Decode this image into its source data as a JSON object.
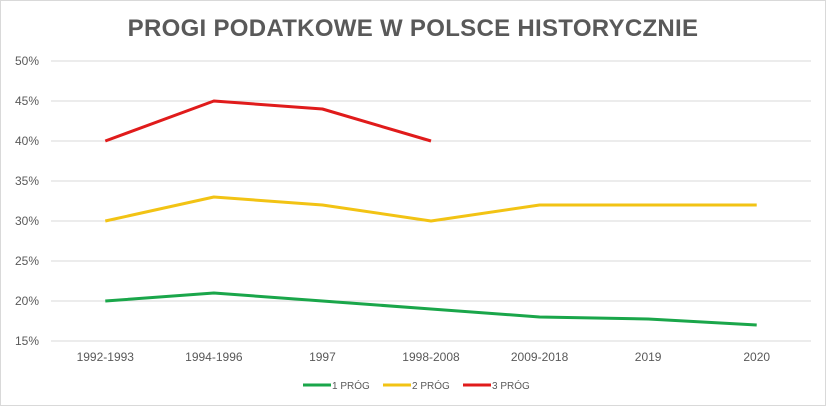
{
  "chart_data": {
    "type": "line",
    "title": "PROGI PODATKOWE W POLSCE HISTORYCZNIE",
    "xlabel": "",
    "ylabel": "",
    "categories": [
      "1992-1993",
      "1994-1996",
      "1997",
      "1998-2008",
      "2009-2018",
      "2019",
      "2020"
    ],
    "ylim": [
      15,
      50
    ],
    "yticks": [
      "15%",
      "20%",
      "25%",
      "30%",
      "35%",
      "40%",
      "45%",
      "50%"
    ],
    "grid": true,
    "legend": "bottom",
    "series": [
      {
        "name": "1 PRÓG",
        "color": "#1aa64a",
        "values": [
          20,
          21,
          20,
          19,
          18,
          17.75,
          17
        ]
      },
      {
        "name": "2 PRÓG",
        "color": "#f2c314",
        "values": [
          30,
          33,
          32,
          30,
          32,
          32,
          32
        ]
      },
      {
        "name": "3 PRÓG",
        "color": "#e01b1b",
        "values": [
          40,
          45,
          44,
          40,
          null,
          null,
          null
        ]
      }
    ]
  }
}
